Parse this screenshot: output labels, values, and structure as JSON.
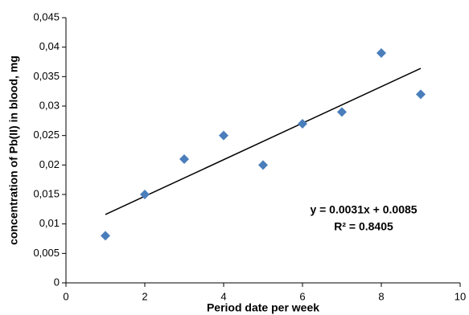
{
  "chart_data": {
    "type": "scatter",
    "x_label": "Period date per week",
    "y_label": "concentration of Pb(II) in blood, mg",
    "x": [
      1,
      2,
      3,
      4,
      5,
      6,
      7,
      8,
      9
    ],
    "series": [
      {
        "color": "#4a7ebb",
        "values": [
          0.008,
          0.015,
          0.021,
          0.025,
          0.02,
          0.027,
          0.029,
          0.039,
          0.032
        ]
      }
    ],
    "trendline": {
      "x": [
        1,
        9
      ],
      "values": [
        0.0116,
        0.0364
      ],
      "color": "#000000"
    },
    "annotations": [
      "y = 0.0031x + 0.0085",
      "R² = 0.8405"
    ],
    "xlim": [
      0,
      10
    ],
    "xticks": [
      0,
      2,
      4,
      6,
      8,
      10
    ],
    "ylim": [
      0,
      0.045
    ],
    "yticks": [
      0,
      {
        "value": 0.005,
        "label": "0,005"
      },
      {
        "value": 0.01,
        "label": "0,01"
      },
      {
        "value": 0.015,
        "label": "0,015"
      },
      {
        "value": 0.02,
        "label": "0,02"
      },
      {
        "value": 0.025,
        "label": "0,025"
      },
      {
        "value": 0.03,
        "label": "0,03"
      },
      {
        "value": 0.035,
        "label": "0,035"
      },
      {
        "value": 0.04,
        "label": "0,04"
      },
      {
        "value": 0.045,
        "label": "0,045"
      }
    ],
    "grid": false
  }
}
